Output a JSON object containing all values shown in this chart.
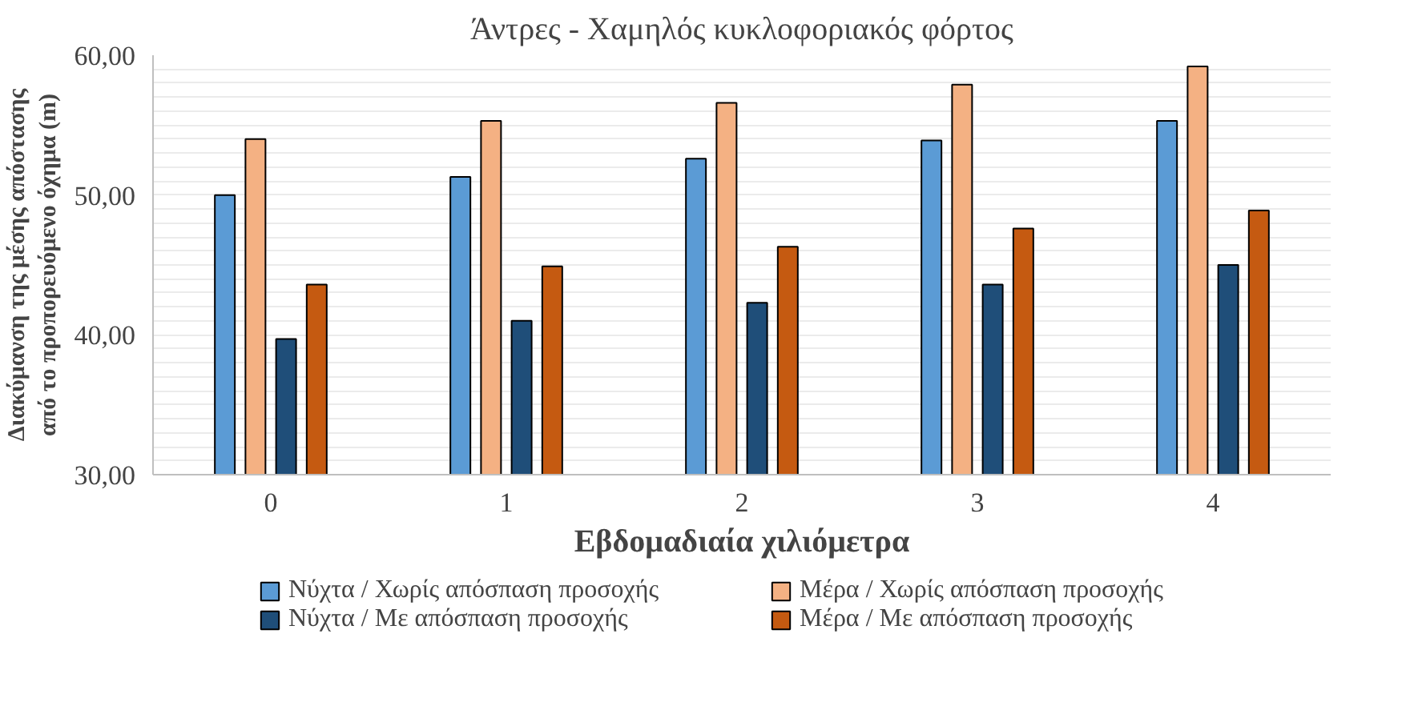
{
  "chart_data": {
    "type": "bar",
    "title": "Άντρες - Χαμηλός κυκλοφοριακός φόρτος",
    "xlabel": "Εβδομαδιαία χιλιόμετρα",
    "ylabel": "Διακύμανση της μέσης απόστασης\nαπό το προπορευόμενο όχημα (m)",
    "categories": [
      "0",
      "1",
      "2",
      "3",
      "4"
    ],
    "series": [
      {
        "name": "Νύχτα / Χωρίς απόσπαση προσοχής",
        "color": "#5b9bd5",
        "values": [
          50.0,
          51.3,
          52.6,
          53.9,
          55.3
        ]
      },
      {
        "name": "Μέρα / Χωρίς απόσπαση προσοχής",
        "color": "#f4b183",
        "values": [
          54.0,
          55.3,
          56.6,
          57.9,
          59.2
        ]
      },
      {
        "name": "Νύχτα / Με απόσπαση προσοχής",
        "color": "#1f4e79",
        "values": [
          39.7,
          41.0,
          42.3,
          43.6,
          45.0
        ]
      },
      {
        "name": "Μέρα / Με απόσπαση προσοχής",
        "color": "#c55a11",
        "values": [
          43.6,
          44.9,
          46.3,
          47.6,
          48.9
        ]
      }
    ],
    "ylim": [
      30,
      60
    ],
    "yticks": [
      {
        "value": 30,
        "label": "30,00"
      },
      {
        "value": 31,
        "label": null
      },
      {
        "value": 32,
        "label": null
      },
      {
        "value": 33,
        "label": null
      },
      {
        "value": 34,
        "label": null
      },
      {
        "value": 35,
        "label": null
      },
      {
        "value": 36,
        "label": null
      },
      {
        "value": 37,
        "label": null
      },
      {
        "value": 38,
        "label": null
      },
      {
        "value": 39,
        "label": null
      },
      {
        "value": 40,
        "label": "40,00"
      },
      {
        "value": 41,
        "label": null
      },
      {
        "value": 42,
        "label": null
      },
      {
        "value": 43,
        "label": null
      },
      {
        "value": 44,
        "label": null
      },
      {
        "value": 45,
        "label": null
      },
      {
        "value": 46,
        "label": null
      },
      {
        "value": 47,
        "label": null
      },
      {
        "value": 48,
        "label": null
      },
      {
        "value": 49,
        "label": null
      },
      {
        "value": 50,
        "label": "50,00"
      },
      {
        "value": 51,
        "label": null
      },
      {
        "value": 52,
        "label": null
      },
      {
        "value": 53,
        "label": null
      },
      {
        "value": 54,
        "label": null
      },
      {
        "value": 55,
        "label": null
      },
      {
        "value": 56,
        "label": null
      },
      {
        "value": 57,
        "label": null
      },
      {
        "value": 58,
        "label": null
      },
      {
        "value": 59,
        "label": null
      },
      {
        "value": 60,
        "label": "60,00"
      }
    ],
    "grid": "y",
    "legend": "bottom"
  }
}
